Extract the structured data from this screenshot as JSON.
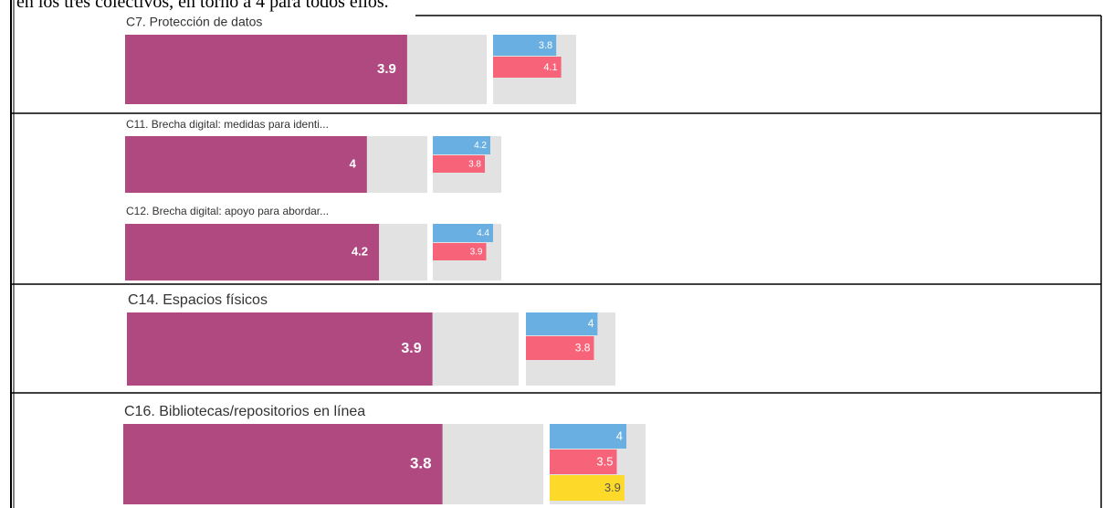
{
  "intro": "en los tres colectivos, en torno a 4 para todos ellos.",
  "chart_data": [
    {
      "type": "bar",
      "title": "C7. Protección de datos",
      "values": [
        3.9
      ],
      "color": "#b0497f",
      "xlim": [
        0,
        5
      ],
      "series": [
        {
          "color": "#6aafe1",
          "values": [
            3.8
          ]
        },
        {
          "color": "#f7647a",
          "values": [
            4.1
          ]
        }
      ]
    },
    {
      "type": "bar",
      "title": "C11. Brecha digital: medidas para identi...",
      "values": [
        4
      ],
      "color": "#b0497f",
      "xlim": [
        0,
        5
      ],
      "series": [
        {
          "color": "#6aafe1",
          "values": [
            4.2
          ]
        },
        {
          "color": "#f7647a",
          "values": [
            3.8
          ]
        }
      ]
    },
    {
      "type": "bar",
      "title": "C12. Brecha digital: apoyo para abordar...",
      "values": [
        4.2
      ],
      "color": "#b0497f",
      "xlim": [
        0,
        5
      ],
      "series": [
        {
          "color": "#6aafe1",
          "values": [
            4.4
          ]
        },
        {
          "color": "#f7647a",
          "values": [
            3.9
          ]
        }
      ]
    },
    {
      "type": "bar",
      "title": "C14. Espacios físicos",
      "values": [
        3.9
      ],
      "color": "#b0497f",
      "xlim": [
        0,
        5
      ],
      "series": [
        {
          "color": "#6aafe1",
          "values": [
            4
          ]
        },
        {
          "color": "#f7647a",
          "values": [
            3.8
          ]
        }
      ]
    },
    {
      "type": "bar",
      "title": "C16. Bibliotecas/repositorios en línea",
      "values": [
        3.8
      ],
      "color": "#b0497f",
      "xlim": [
        0,
        5
      ],
      "series": [
        {
          "color": "#6aafe1",
          "values": [
            4
          ]
        },
        {
          "color": "#f7647a",
          "values": [
            3.5
          ]
        },
        {
          "color": "#fdd92a",
          "values": [
            3.9
          ]
        }
      ]
    }
  ]
}
